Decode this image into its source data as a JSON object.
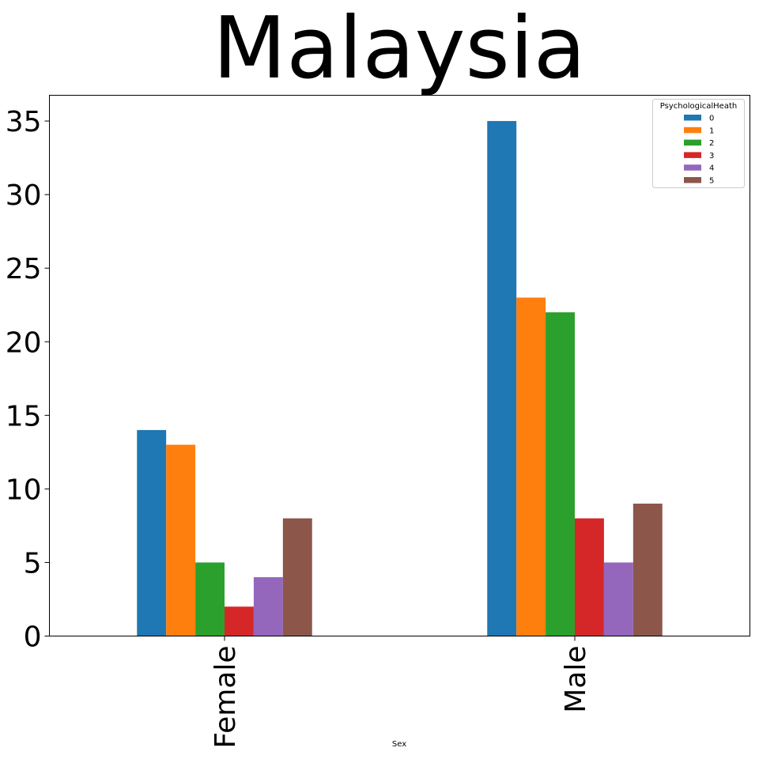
{
  "chart_data": {
    "type": "bar",
    "title": "Malaysia",
    "xlabel": "Sex",
    "ylabel": "",
    "categories": [
      "Female",
      "Male"
    ],
    "legend_title": "PsychologicalHeath",
    "legend_position": "top-right",
    "ylim": [
      0,
      36.75
    ],
    "yticks": [
      0,
      5,
      10,
      15,
      20,
      25,
      30,
      35
    ],
    "grid": false,
    "series": [
      {
        "name": "0",
        "color": "#1f77b4",
        "values": [
          14,
          35
        ]
      },
      {
        "name": "1",
        "color": "#ff7f0e",
        "values": [
          13,
          23
        ]
      },
      {
        "name": "2",
        "color": "#2ca02c",
        "values": [
          5,
          22
        ]
      },
      {
        "name": "3",
        "color": "#d62728",
        "values": [
          2,
          8
        ]
      },
      {
        "name": "4",
        "color": "#9467bd",
        "values": [
          4,
          5
        ]
      },
      {
        "name": "5",
        "color": "#8c564b",
        "values": [
          8,
          9
        ]
      }
    ]
  }
}
